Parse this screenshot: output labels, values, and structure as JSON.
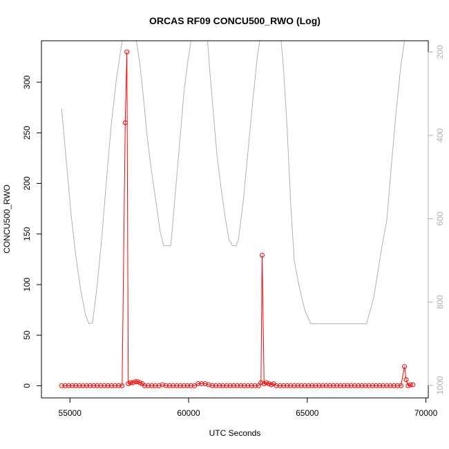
{
  "chart_data": {
    "type": "line",
    "title": "ORCAS RF09 CONCU500_RWO (Log)",
    "xlabel": "UTC Seconds",
    "ylabel": "CONCU500_RWO",
    "xlim": [
      53800,
      70100
    ],
    "ylim": [
      -12,
      341
    ],
    "x_ticks": [
      55000,
      60000,
      65000,
      70000
    ],
    "x_tick_labels": [
      "55000",
      "60000",
      "65000",
      "70000"
    ],
    "y_ticks": [
      0,
      50,
      100,
      150,
      200,
      250,
      300
    ],
    "y_tick_labels": [
      "0",
      "50",
      "100",
      "150",
      "200",
      "250",
      "300"
    ],
    "y2_ticks": [
      200,
      400,
      600,
      800,
      1000
    ],
    "y2_tick_labels": [
      "200",
      "400",
      "600",
      "800",
      "1000"
    ],
    "y2_inverted": true,
    "y2lim": [
      1030,
      173
    ],
    "grid": false,
    "colors": {
      "series": "#ff0000",
      "secondary": "#b0b0b0",
      "axis": "#000000"
    },
    "series": [
      {
        "values": [
          [
            54650,
            0
          ],
          [
            54800,
            0
          ],
          [
            54950,
            0
          ],
          [
            55100,
            0
          ],
          [
            55250,
            0
          ],
          [
            55400,
            0
          ],
          [
            55550,
            0
          ],
          [
            55700,
            0
          ],
          [
            55850,
            0
          ],
          [
            56000,
            0
          ],
          [
            56150,
            0
          ],
          [
            56300,
            0
          ],
          [
            56450,
            0
          ],
          [
            56600,
            0
          ],
          [
            56750,
            0
          ],
          [
            56900,
            0
          ],
          [
            57050,
            0
          ],
          [
            57200,
            0
          ],
          [
            57330,
            260
          ],
          [
            57400,
            330
          ],
          [
            57460,
            2
          ],
          [
            57550,
            3
          ],
          [
            57650,
            3
          ],
          [
            57750,
            4
          ],
          [
            57850,
            4
          ],
          [
            57950,
            3
          ],
          [
            58050,
            2
          ],
          [
            58150,
            0
          ],
          [
            58300,
            0
          ],
          [
            58450,
            0
          ],
          [
            58600,
            0
          ],
          [
            58750,
            0
          ],
          [
            58900,
            1
          ],
          [
            59050,
            0
          ],
          [
            59200,
            0
          ],
          [
            59350,
            0
          ],
          [
            59500,
            0
          ],
          [
            59650,
            0
          ],
          [
            59800,
            0
          ],
          [
            59950,
            0
          ],
          [
            60100,
            0
          ],
          [
            60250,
            0
          ],
          [
            60400,
            2
          ],
          [
            60550,
            2
          ],
          [
            60700,
            2
          ],
          [
            60850,
            1
          ],
          [
            61000,
            0
          ],
          [
            61150,
            0
          ],
          [
            61300,
            0
          ],
          [
            61450,
            0
          ],
          [
            61600,
            0
          ],
          [
            61750,
            0
          ],
          [
            61900,
            0
          ],
          [
            62050,
            0
          ],
          [
            62200,
            0
          ],
          [
            62350,
            0
          ],
          [
            62500,
            0
          ],
          [
            62650,
            0
          ],
          [
            62800,
            0
          ],
          [
            62950,
            0
          ],
          [
            63050,
            3
          ],
          [
            63100,
            129
          ],
          [
            63180,
            2
          ],
          [
            63280,
            3
          ],
          [
            63380,
            2
          ],
          [
            63480,
            1
          ],
          [
            63580,
            2
          ],
          [
            63700,
            0
          ],
          [
            63850,
            0
          ],
          [
            64000,
            0
          ],
          [
            64150,
            0
          ],
          [
            64300,
            0
          ],
          [
            64450,
            0
          ],
          [
            64600,
            0
          ],
          [
            64750,
            0
          ],
          [
            64900,
            0
          ],
          [
            65050,
            0
          ],
          [
            65200,
            0
          ],
          [
            65350,
            0
          ],
          [
            65500,
            0
          ],
          [
            65650,
            0
          ],
          [
            65800,
            0
          ],
          [
            65950,
            0
          ],
          [
            66100,
            0
          ],
          [
            66250,
            0
          ],
          [
            66400,
            0
          ],
          [
            66550,
            0
          ],
          [
            66700,
            0
          ],
          [
            66850,
            0
          ],
          [
            67000,
            0
          ],
          [
            67150,
            0
          ],
          [
            67300,
            0
          ],
          [
            67450,
            0
          ],
          [
            67600,
            0
          ],
          [
            67750,
            0
          ],
          [
            67900,
            0
          ],
          [
            68050,
            0
          ],
          [
            68200,
            0
          ],
          [
            68350,
            0
          ],
          [
            68500,
            0
          ],
          [
            68650,
            0
          ],
          [
            68800,
            0
          ],
          [
            68950,
            0
          ],
          [
            69100,
            19
          ],
          [
            69170,
            6
          ],
          [
            69250,
            0
          ],
          [
            69350,
            1
          ],
          [
            69450,
            1
          ]
        ]
      },
      {
        "axis": "right",
        "values": [
          [
            54650,
            336
          ],
          [
            54850,
            463
          ],
          [
            55050,
            590
          ],
          [
            55250,
            690
          ],
          [
            55450,
            770
          ],
          [
            55650,
            830
          ],
          [
            55800,
            852
          ],
          [
            55950,
            850
          ],
          [
            56150,
            760
          ],
          [
            56350,
            640
          ],
          [
            56550,
            500
          ],
          [
            56750,
            370
          ],
          [
            56950,
            270
          ],
          [
            57100,
            210
          ],
          [
            57200,
            173
          ],
          [
            57800,
            173
          ],
          [
            57950,
            230
          ],
          [
            58100,
            310
          ],
          [
            58250,
            400
          ],
          [
            58400,
            470
          ],
          [
            58550,
            530
          ],
          [
            58700,
            590
          ],
          [
            58800,
            630
          ],
          [
            58950,
            665
          ],
          [
            59100,
            665
          ],
          [
            59250,
            665
          ],
          [
            59350,
            600
          ],
          [
            59500,
            500
          ],
          [
            59650,
            400
          ],
          [
            59800,
            300
          ],
          [
            59950,
            230
          ],
          [
            60100,
            173
          ],
          [
            60350,
            173
          ],
          [
            60550,
            173
          ],
          [
            60800,
            173
          ],
          [
            60900,
            250
          ],
          [
            61050,
            350
          ],
          [
            61200,
            450
          ],
          [
            61400,
            540
          ],
          [
            61550,
            600
          ],
          [
            61700,
            650
          ],
          [
            61850,
            665
          ],
          [
            62000,
            665
          ],
          [
            62100,
            650
          ],
          [
            62300,
            560
          ],
          [
            62500,
            440
          ],
          [
            62700,
            320
          ],
          [
            62900,
            210
          ],
          [
            63000,
            173
          ],
          [
            63900,
            173
          ],
          [
            64000,
            240
          ],
          [
            64150,
            380
          ],
          [
            64300,
            560
          ],
          [
            64450,
            700
          ],
          [
            64650,
            760
          ],
          [
            64900,
            820
          ],
          [
            65150,
            852
          ],
          [
            65500,
            852
          ],
          [
            66000,
            852
          ],
          [
            66500,
            852
          ],
          [
            67000,
            852
          ],
          [
            67500,
            852
          ],
          [
            67800,
            790
          ],
          [
            68050,
            700
          ],
          [
            68200,
            650
          ],
          [
            68350,
            605
          ],
          [
            68550,
            470
          ],
          [
            68750,
            340
          ],
          [
            68950,
            230
          ],
          [
            69100,
            173
          ]
        ]
      }
    ]
  }
}
